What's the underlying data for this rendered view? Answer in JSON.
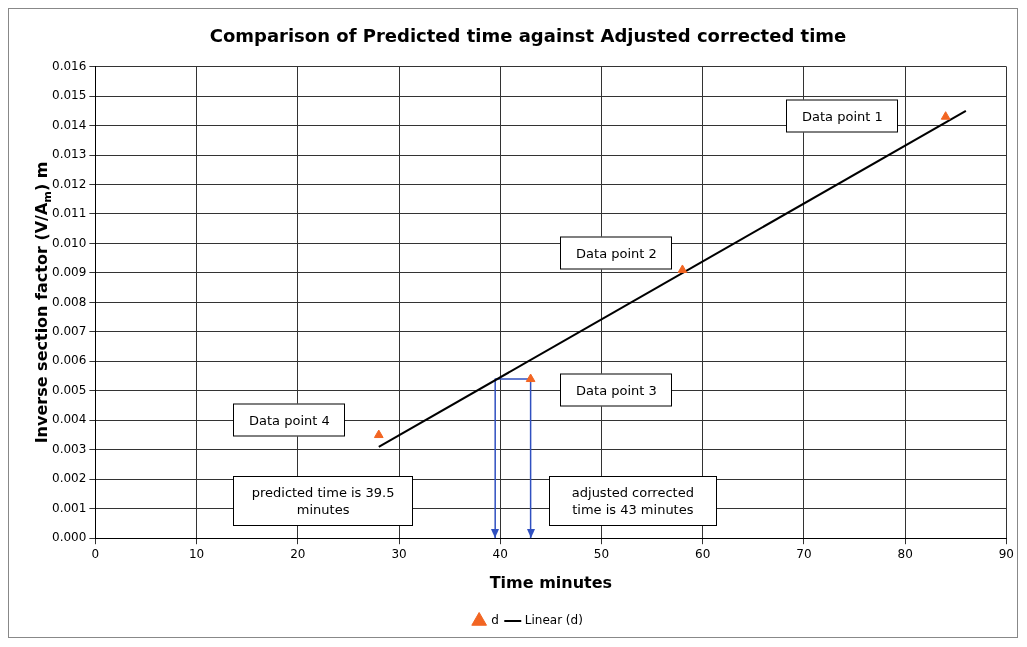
{
  "chart_data": {
    "type": "scatter",
    "title": "Comparison of Predicted time against Adjusted corrected time",
    "xlabel": "Time minutes",
    "ylabel": "Inverse section factor (V/A$_{m}$) m",
    "series": [
      {
        "name": "d",
        "color": "#f26522",
        "marker": "triangle",
        "x": [
          28,
          43,
          58,
          84
        ],
        "values": [
          0.0035,
          0.0054,
          0.0091,
          0.0143
        ]
      },
      {
        "name": "Linear (d)",
        "type": "line",
        "color": "#000000",
        "marker": "none",
        "line_style": "solid",
        "x": [
          28,
          86
        ],
        "values": [
          0.0031,
          0.0145
        ]
      },
      {
        "type": "line",
        "color": "#3050c0",
        "marker": "none",
        "line_style": "solid",
        "x": [
          39.5,
          39.5,
          43,
          43
        ],
        "values": [
          0,
          0.0054,
          0.0054,
          0
        ]
      }
    ],
    "xlim": [
      0,
      90
    ],
    "xticks": [
      0,
      10,
      20,
      30,
      40,
      50,
      60,
      70,
      80,
      90
    ],
    "ylim": [
      0,
      0.016
    ],
    "yticks": [
      {
        "value": 0,
        "label": "0.000"
      },
      {
        "value": 0.001,
        "label": "0.001"
      },
      {
        "value": 0.002,
        "label": "0.002"
      },
      {
        "value": 0.003,
        "label": "0.003"
      },
      {
        "value": 0.004,
        "label": "0.004"
      },
      {
        "value": 0.005,
        "label": "0.005"
      },
      {
        "value": 0.006,
        "label": "0.006"
      },
      {
        "value": 0.007,
        "label": "0.007"
      },
      {
        "value": 0.008,
        "label": "0.008"
      },
      {
        "value": 0.009,
        "label": "0.009"
      },
      {
        "value": 0.01,
        "label": "0.010"
      },
      {
        "value": 0.011,
        "label": "0.011"
      },
      {
        "value": 0.012,
        "label": "0.012"
      },
      {
        "value": 0.013,
        "label": "0.013"
      },
      {
        "value": 0.014,
        "label": "0.014"
      },
      {
        "value": 0.015,
        "label": "0.015"
      },
      {
        "value": 0.016,
        "label": "0.016"
      }
    ],
    "annotations": [
      "Data point 1",
      "Data point 2",
      "Data point 3",
      "Data point 4",
      "predicted time is 39.5 minutes",
      "adjusted corrected time is 43 minutes"
    ],
    "grid": true,
    "legend": "bottom"
  }
}
